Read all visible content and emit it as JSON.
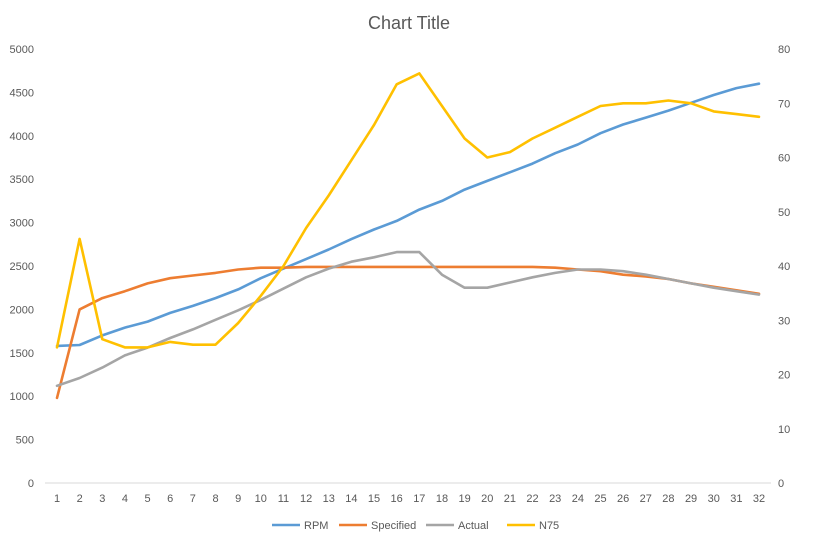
{
  "chart_data": {
    "type": "line",
    "title": "Chart Title",
    "xlabel": "",
    "ylabel": "",
    "y2label": "",
    "categories": [
      "1",
      "2",
      "3",
      "4",
      "5",
      "6",
      "7",
      "8",
      "9",
      "10",
      "11",
      "12",
      "13",
      "14",
      "15",
      "16",
      "17",
      "18",
      "19",
      "20",
      "21",
      "22",
      "23",
      "24",
      "25",
      "26",
      "27",
      "28",
      "29",
      "30",
      "31",
      "32"
    ],
    "ylim": [
      0,
      5000
    ],
    "y_ticks": [
      0,
      500,
      1000,
      1500,
      2000,
      2500,
      3000,
      3500,
      4000,
      4500,
      5000
    ],
    "y2lim": [
      0,
      80
    ],
    "y2_ticks": [
      0,
      10,
      20,
      30,
      40,
      50,
      60,
      70,
      80
    ],
    "grid": false,
    "legend_position": "bottom",
    "series": [
      {
        "name": "RPM",
        "axis": "left",
        "color": "#5B9BD5",
        "values": [
          1580,
          1590,
          1700,
          1790,
          1860,
          1960,
          2040,
          2130,
          2230,
          2360,
          2470,
          2580,
          2690,
          2810,
          2920,
          3020,
          3150,
          3250,
          3380,
          3480,
          3580,
          3680,
          3800,
          3900,
          4030,
          4130,
          4210,
          4290,
          4380,
          4470,
          4550,
          4600
        ]
      },
      {
        "name": "Specified",
        "axis": "left",
        "color": "#ED7D31",
        "values": [
          980,
          2000,
          2130,
          2210,
          2300,
          2360,
          2390,
          2420,
          2460,
          2480,
          2480,
          2490,
          2490,
          2490,
          2490,
          2490,
          2490,
          2490,
          2490,
          2490,
          2490,
          2490,
          2480,
          2460,
          2440,
          2400,
          2380,
          2350,
          2300,
          2260,
          2220,
          2180
        ]
      },
      {
        "name": "Actual",
        "axis": "left",
        "color": "#A5A5A5",
        "values": [
          1120,
          1210,
          1330,
          1470,
          1560,
          1670,
          1770,
          1880,
          1990,
          2110,
          2240,
          2370,
          2470,
          2550,
          2600,
          2660,
          2660,
          2400,
          2250,
          2250,
          2310,
          2370,
          2420,
          2460,
          2460,
          2440,
          2400,
          2350,
          2300,
          2250,
          2210,
          2170
        ]
      },
      {
        "name": "N75",
        "axis": "right",
        "color": "#FFC000",
        "values": [
          25,
          45,
          26.5,
          25,
          25,
          26,
          25.5,
          25.5,
          29.5,
          34.5,
          40,
          47,
          53,
          59.5,
          66,
          73.5,
          75.5,
          69.5,
          63.5,
          60,
          61,
          63.5,
          65.5,
          67.5,
          69.5,
          70,
          70,
          70.5,
          70,
          68.5,
          68,
          67.5
        ]
      }
    ]
  }
}
